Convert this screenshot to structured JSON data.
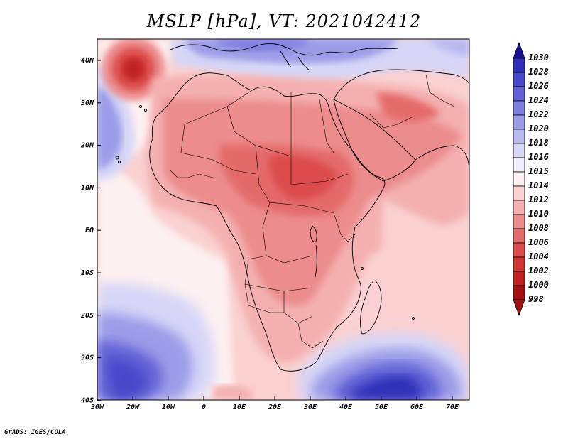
{
  "title": "MSLP [hPa], VT: 2021042412",
  "footer": "GrADS: IGES/COLA",
  "map": {
    "lon_ticks": [
      "30W",
      "20W",
      "10W",
      "0",
      "10E",
      "20E",
      "30E",
      "40E",
      "50E",
      "60E",
      "70E"
    ],
    "lat_ticks": [
      "40N",
      "30N",
      "20N",
      "10N",
      "EQ",
      "10S",
      "20S",
      "30S",
      "40S"
    ]
  },
  "colorbar": {
    "levels": [
      "1030",
      "1028",
      "1026",
      "1024",
      "1022",
      "1020",
      "1018",
      "1016",
      "1015",
      "1014",
      "1012",
      "1010",
      "1008",
      "1006",
      "1004",
      "1002",
      "1000",
      "998"
    ],
    "colors": [
      "#1a0f99",
      "#2e2eb8",
      "#4747c9",
      "#6262d6",
      "#7f7fe0",
      "#9b9be8",
      "#b8b8f0",
      "#d6d6f7",
      "#efeffc",
      "#fdf0f0",
      "#fad0d0",
      "#f4b0b0",
      "#ec8c8c",
      "#e46b6b",
      "#dc4c4c",
      "#d23434",
      "#c02020",
      "#a41010"
    ]
  }
}
